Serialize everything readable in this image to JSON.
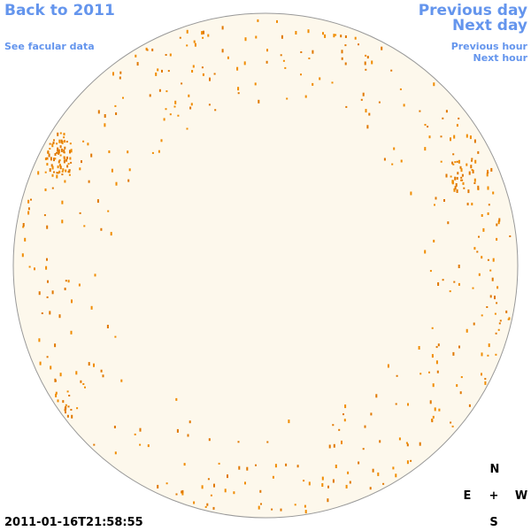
{
  "links": {
    "back": "Back to 2011",
    "facular": "See facular data",
    "prev_day": "Previous day",
    "next_day": "Next day",
    "prev_hour": "Previous hour",
    "next_hour": "Next hour"
  },
  "timestamp": "2011-01-16T21:58:55",
  "compass": {
    "north": "N",
    "east": "E",
    "center": "+",
    "west": "W",
    "south": "S"
  }
}
